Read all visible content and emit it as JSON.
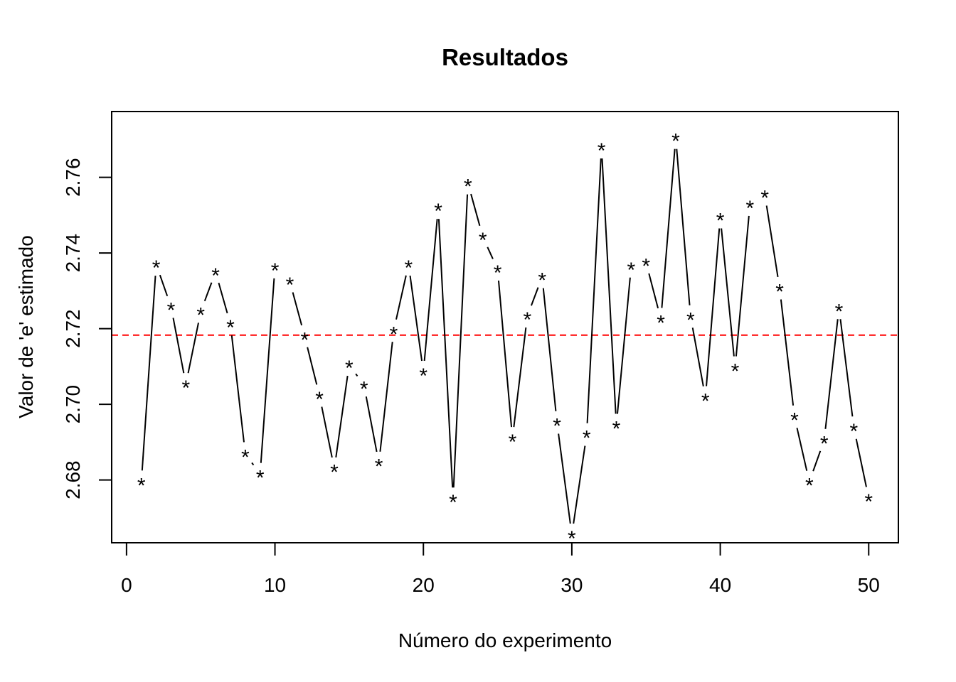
{
  "chart_data": {
    "type": "line",
    "title": "Resultados",
    "xlabel": "Número do experimento",
    "ylabel": "Valor de 'e' estimado",
    "xlim": [
      -1.0,
      52.0
    ],
    "ylim": [
      2.6634,
      2.7774
    ],
    "x_ticks": [
      0,
      10,
      20,
      30,
      40,
      50
    ],
    "x_tick_labels": [
      "0",
      "10",
      "20",
      "30",
      "40",
      "50"
    ],
    "y_ticks": [
      2.68,
      2.7,
      2.72,
      2.74,
      2.76
    ],
    "y_tick_labels": [
      "2.68",
      "2.70",
      "2.72",
      "2.74",
      "2.76"
    ],
    "point_symbol": "*",
    "reference_line": {
      "y": 2.71828,
      "color": "#ff0000",
      "style": "dashed"
    },
    "series": [
      {
        "line_color": "#000000",
        "x": [
          1,
          2,
          3,
          4,
          5,
          6,
          7,
          8,
          9,
          10,
          11,
          12,
          13,
          14,
          15,
          16,
          17,
          18,
          19,
          20,
          21,
          22,
          23,
          24,
          25,
          26,
          27,
          28,
          29,
          30,
          31,
          32,
          33,
          34,
          35,
          36,
          37,
          38,
          39,
          40,
          41,
          42,
          43,
          44,
          45,
          46,
          47,
          48,
          49,
          50
        ],
        "y": [
          2.6795,
          2.737,
          2.7258,
          2.7053,
          2.7245,
          2.735,
          2.7212,
          2.687,
          2.6815,
          2.7363,
          2.7325,
          2.718,
          2.7023,
          2.683,
          2.7105,
          2.705,
          2.6845,
          2.7195,
          2.737,
          2.7085,
          2.752,
          2.675,
          2.7585,
          2.7443,
          2.7357,
          2.691,
          2.7233,
          2.7337,
          2.6952,
          2.6655,
          2.692,
          2.768,
          2.6945,
          2.7365,
          2.7375,
          2.7225,
          2.7705,
          2.7232,
          2.7018,
          2.7495,
          2.7097,
          2.7528,
          2.7555,
          2.7307,
          2.6967,
          2.6795,
          2.6905,
          2.7255,
          2.6938,
          2.6752
        ]
      }
    ]
  }
}
